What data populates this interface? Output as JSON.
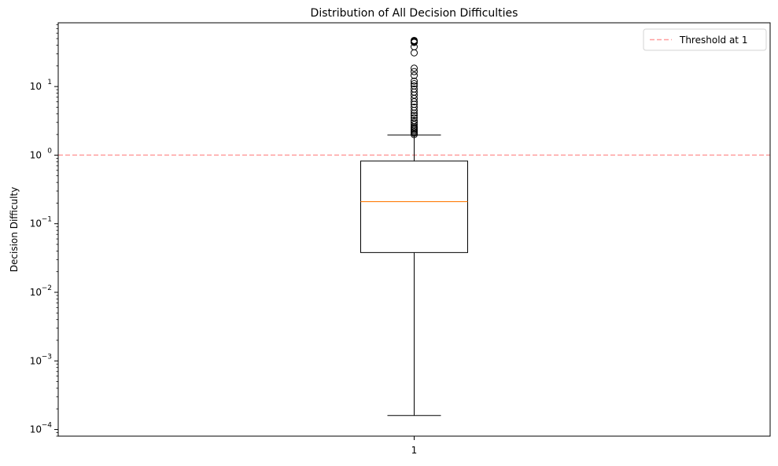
{
  "chart_data": {
    "type": "box",
    "title": "Distribution of All Decision Difficulties",
    "xlabel": "",
    "ylabel": "Decision Difficulty",
    "yscale": "log",
    "ylim": [
      8e-05,
      85
    ],
    "categories": [
      "1"
    ],
    "box": {
      "whisker_low": 0.00016,
      "q1": 0.038,
      "median": 0.21,
      "q3": 0.82,
      "whisker_high": 1.96
    },
    "outliers": [
      2.0,
      2.1,
      2.2,
      2.3,
      2.4,
      2.5,
      2.6,
      2.8,
      3.0,
      3.2,
      3.5,
      3.8,
      4.1,
      4.5,
      5.0,
      5.5,
      6.0,
      6.7,
      7.5,
      8.3,
      9.2,
      10.2,
      11.0,
      12.0,
      14.5,
      16.5,
      18.5,
      31,
      38,
      44,
      45,
      46,
      47
    ],
    "threshold": {
      "value": 1,
      "label": "Threshold at 1",
      "color": "#ff9e9e"
    },
    "y_ticks": [
      {
        "value": 0.0001,
        "base": "10",
        "exp": "−4"
      },
      {
        "value": 0.001,
        "base": "10",
        "exp": "−3"
      },
      {
        "value": 0.01,
        "base": "10",
        "exp": "−2"
      },
      {
        "value": 0.1,
        "base": "10",
        "exp": "−1"
      },
      {
        "value": 1,
        "base": "10",
        "exp": "0"
      },
      {
        "value": 10,
        "base": "10",
        "exp": "1"
      }
    ],
    "legend_position": "top-right",
    "grid": false,
    "colors": {
      "box": "#000000",
      "median": "#ff7f0e",
      "threshold": "#ff9e9e"
    }
  }
}
